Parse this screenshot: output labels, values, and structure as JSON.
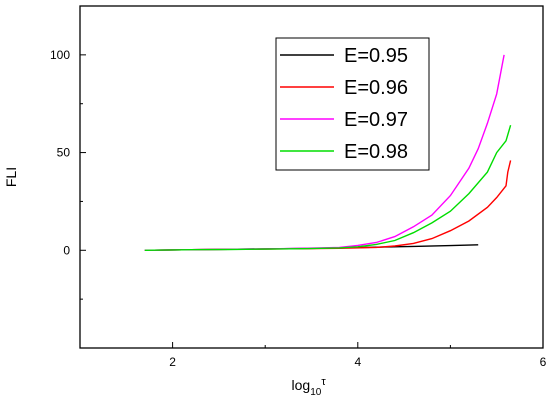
{
  "chart_data": {
    "type": "line",
    "xlabel": {
      "base": "log",
      "sub": "10",
      "sup": "τ"
    },
    "ylabel": "FLI",
    "xlim": [
      1.0,
      6.0
    ],
    "ylim": [
      -50,
      125
    ],
    "xticks": [
      2,
      4,
      6
    ],
    "yticks": [
      0,
      50,
      100
    ],
    "legend_position": "top-right",
    "grid": false,
    "series": [
      {
        "name": "E=0.95",
        "color": "#000000",
        "x": [
          1.7,
          2.2,
          2.6,
          3.0,
          3.4,
          3.8,
          4.2,
          4.6,
          5.0,
          5.3
        ],
        "y": [
          0.0,
          0.3,
          0.5,
          0.7,
          0.9,
          1.2,
          1.6,
          2.0,
          2.4,
          2.8
        ]
      },
      {
        "name": "E=0.96",
        "color": "#ff0000",
        "x": [
          1.7,
          2.2,
          2.6,
          3.0,
          3.4,
          3.8,
          4.2,
          4.4,
          4.6,
          4.8,
          5.0,
          5.2,
          5.4,
          5.5,
          5.6,
          5.62,
          5.65
        ],
        "y": [
          0.0,
          0.3,
          0.5,
          0.6,
          0.8,
          1.0,
          1.5,
          2.2,
          3.5,
          6.0,
          10.0,
          15.0,
          22.0,
          27.0,
          33.0,
          40.0,
          46.0
        ]
      },
      {
        "name": "E=0.97",
        "color": "#ff00ff",
        "x": [
          1.7,
          2.2,
          2.6,
          3.0,
          3.4,
          3.8,
          4.0,
          4.2,
          4.4,
          4.6,
          4.8,
          5.0,
          5.2,
          5.3,
          5.4,
          5.5,
          5.58
        ],
        "y": [
          0.0,
          0.3,
          0.5,
          0.7,
          1.0,
          1.5,
          2.5,
          4.0,
          7.0,
          12.0,
          18.0,
          28.0,
          42.0,
          52.0,
          65.0,
          80.0,
          100.0
        ]
      },
      {
        "name": "E=0.98",
        "color": "#00dd00",
        "x": [
          1.7,
          2.2,
          2.6,
          3.0,
          3.4,
          3.8,
          4.0,
          4.2,
          4.4,
          4.6,
          4.8,
          5.0,
          5.2,
          5.4,
          5.5,
          5.6,
          5.65
        ],
        "y": [
          0.0,
          0.3,
          0.4,
          0.6,
          0.8,
          1.2,
          1.8,
          3.0,
          5.0,
          9.0,
          14.0,
          20.0,
          29.0,
          40.0,
          50.0,
          56.0,
          64.0
        ]
      }
    ]
  }
}
